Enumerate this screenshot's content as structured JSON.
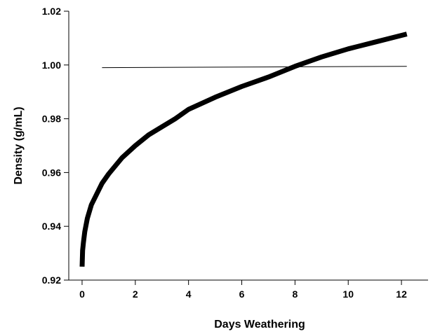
{
  "chart_data": {
    "type": "line",
    "title": "",
    "xlabel": "Days Weathering",
    "ylabel": "Density (g/mL)",
    "xlim": [
      -0.5,
      13
    ],
    "ylim": [
      0.92,
      1.02
    ],
    "x_ticks": [
      0,
      2,
      4,
      6,
      8,
      10,
      12
    ],
    "x_tick_labels": [
      "0",
      "2",
      "4",
      "6",
      "8",
      "10",
      "12"
    ],
    "y_ticks": [
      0.92,
      0.94,
      0.96,
      0.98,
      1.0,
      1.02
    ],
    "y_tick_labels": [
      "0.92",
      "0.94",
      "0.96",
      "0.98",
      "1.00",
      "1.02"
    ],
    "grid": false,
    "legend": "none",
    "series": [
      {
        "color": "#000000",
        "line": "thick",
        "x": [
          0,
          0.02,
          0.05,
          0.1,
          0.2,
          0.35,
          0.5,
          0.75,
          1,
          1.5,
          2,
          2.5,
          3,
          3.5,
          4,
          5,
          6,
          7,
          8,
          9,
          10,
          11,
          12.2
        ],
        "y": [
          0.925,
          0.931,
          0.934,
          0.938,
          0.943,
          0.948,
          0.951,
          0.956,
          0.9595,
          0.9655,
          0.97,
          0.974,
          0.977,
          0.98,
          0.9835,
          0.988,
          0.992,
          0.9955,
          0.9995,
          1.003,
          1.006,
          1.0085,
          1.0115
        ]
      },
      {
        "color": "#000000",
        "line": "thin",
        "x": [
          0.75,
          12.2
        ],
        "y": [
          0.999,
          0.9995
        ]
      }
    ]
  }
}
